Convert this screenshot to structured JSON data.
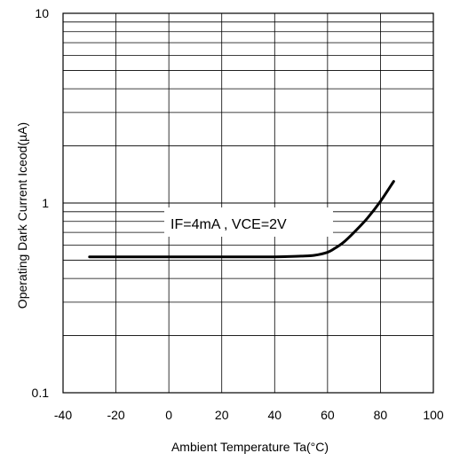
{
  "chart_data": {
    "type": "line",
    "title": "",
    "xlabel": "Ambient Temperature Ta(°C)",
    "ylabel": "Operating Dark Current Iceod(µA)",
    "xlim": [
      -40,
      100
    ],
    "ylim": [
      0.1,
      10
    ],
    "yscale": "log",
    "grid": true,
    "x_ticks": [
      -40,
      -20,
      0,
      20,
      40,
      60,
      80,
      100
    ],
    "x_tick_labels": [
      "-40",
      "-20",
      "0",
      "20",
      "40",
      "60",
      "80",
      "100"
    ],
    "y_ticks": [
      0.1,
      1,
      10
    ],
    "y_tick_labels": [
      "0.1",
      "1",
      "10"
    ],
    "annotation": "IF=4mA , VCE=2V",
    "series": [
      {
        "x": [
          -30,
          -20,
          -10,
          0,
          10,
          20,
          30,
          40,
          45,
          50,
          55,
          60,
          63,
          66,
          70,
          75,
          80,
          85
        ],
        "y": [
          0.52,
          0.52,
          0.52,
          0.52,
          0.52,
          0.52,
          0.52,
          0.52,
          0.522,
          0.525,
          0.53,
          0.55,
          0.58,
          0.62,
          0.7,
          0.83,
          1.02,
          1.3
        ]
      }
    ]
  }
}
